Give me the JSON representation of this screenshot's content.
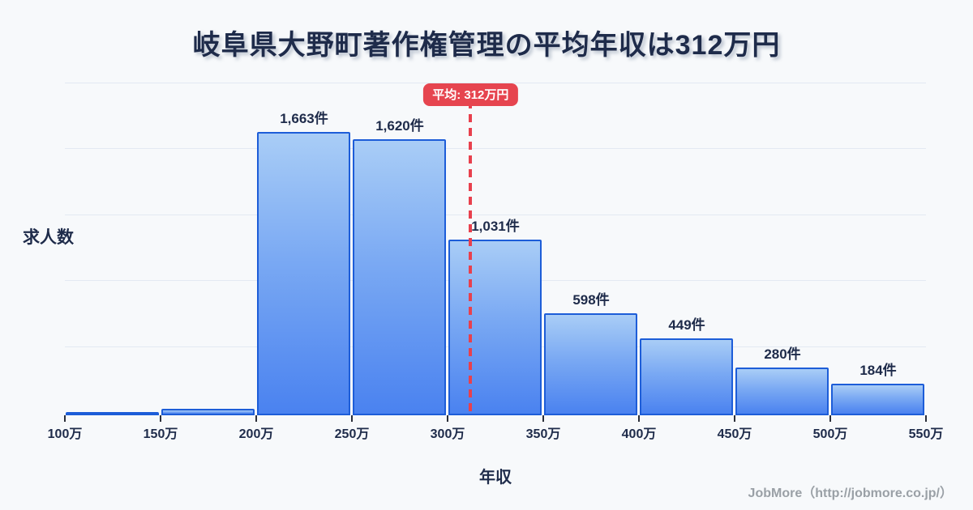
{
  "page": {
    "background": "#f7f9fb"
  },
  "colors": {
    "bar_border": "#1d5dd8",
    "bar_fill_top": "#a9cdf6",
    "bar_fill_bottom": "#4a82f0",
    "mean_red": "#e6454f",
    "text_navy": "#1e2b4a",
    "grid_line": "#e3e9f2",
    "footer_gray": "#9aa0a6"
  },
  "footer": {
    "credit": "JobMore（http://jobmore.co.jp/）"
  },
  "chart_data": {
    "type": "bar",
    "title": "岐阜県大野町著作権管理の平均年収は312万円",
    "xlabel": "年収",
    "ylabel": "求人数",
    "x_ticks": [
      "100万",
      "150万",
      "200万",
      "250万",
      "300万",
      "350万",
      "400万",
      "450万",
      "500万",
      "550万"
    ],
    "x_range_man_yen": [
      100,
      550
    ],
    "ylim": [
      0,
      1950
    ],
    "grid": true,
    "legend": "none",
    "bins": [
      {
        "range": "100万-150万",
        "value": 10,
        "label": ""
      },
      {
        "range": "150万-200万",
        "value": 40,
        "label": ""
      },
      {
        "range": "200万-250万",
        "value": 1663,
        "label": "1,663件"
      },
      {
        "range": "250万-300万",
        "value": 1620,
        "label": "1,620件"
      },
      {
        "range": "300万-350万",
        "value": 1031,
        "label": "1,031件"
      },
      {
        "range": "350万-400万",
        "value": 598,
        "label": "598件"
      },
      {
        "range": "400万-450万",
        "value": 449,
        "label": "449件"
      },
      {
        "range": "450万-500万",
        "value": 280,
        "label": "280件"
      },
      {
        "range": "500万-550万",
        "value": 184,
        "label": "184件"
      }
    ],
    "mean_annotation": {
      "value_man_yen": 312,
      "label": "平均: 312万円"
    }
  }
}
